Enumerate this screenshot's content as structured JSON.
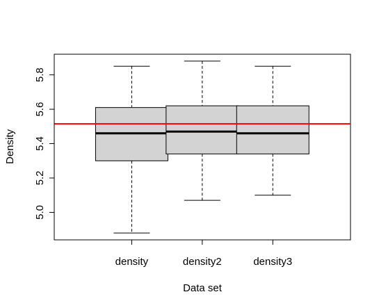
{
  "chart_data": {
    "type": "box",
    "title": "",
    "xlabel": "Data set",
    "ylabel": "Density",
    "ylim": [
      4.84,
      5.92
    ],
    "yticks": [
      "5.0",
      "5.2",
      "5.4",
      "5.6",
      "5.8"
    ],
    "categories": [
      "density",
      "density2",
      "density3"
    ],
    "boxes": [
      {
        "whisker_low": 4.88,
        "q1": 5.3,
        "median": 5.46,
        "q3": 5.61,
        "whisker_high": 5.85
      },
      {
        "whisker_low": 5.07,
        "q1": 5.34,
        "median": 5.47,
        "q3": 5.62,
        "whisker_high": 5.88
      },
      {
        "whisker_low": 5.1,
        "q1": 5.34,
        "median": 5.46,
        "q3": 5.62,
        "whisker_high": 5.85
      }
    ],
    "reference_line": {
      "value": 5.515,
      "color": "#ff0000"
    },
    "box_fill": "#d3d3d3",
    "grid": false
  }
}
